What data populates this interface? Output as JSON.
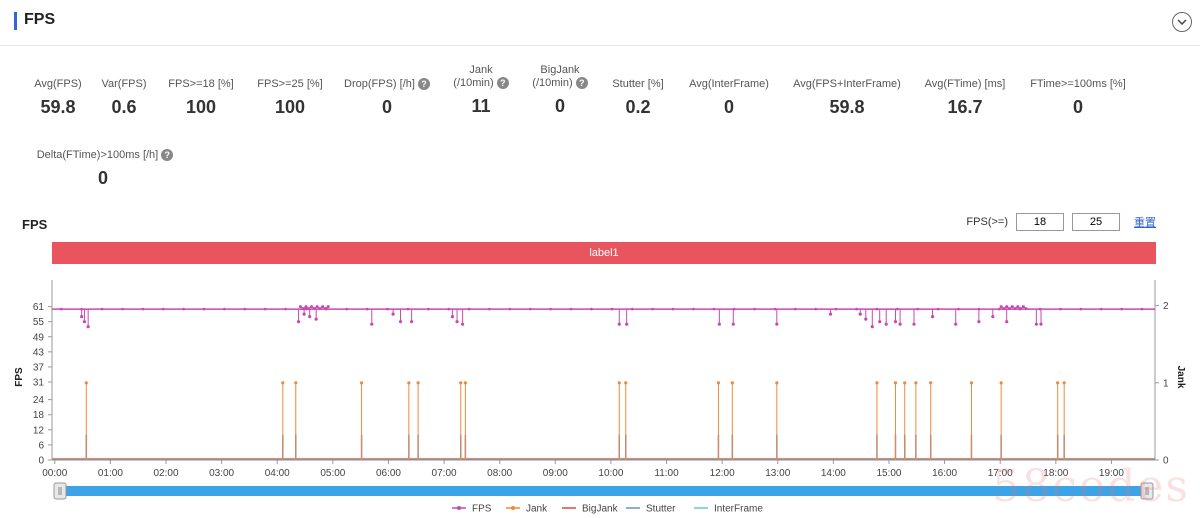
{
  "header": {
    "title": "FPS",
    "collapse_icon": "chevron-down-icon"
  },
  "metrics": [
    {
      "label": "Avg(FPS)",
      "value": "59.8",
      "help": false
    },
    {
      "label": "Var(FPS)",
      "value": "0.6",
      "help": false
    },
    {
      "label": "FPS>=18 [%]",
      "value": "100",
      "help": false
    },
    {
      "label": "FPS>=25 [%]",
      "value": "100",
      "help": false
    },
    {
      "label": "Drop(FPS) [/h]",
      "value": "0",
      "help": true
    },
    {
      "label": "Jank",
      "label2": "(/10min)",
      "value": "11",
      "help": true
    },
    {
      "label": "BigJank",
      "label2": "(/10min)",
      "value": "0",
      "help": true
    },
    {
      "label": "Stutter [%]",
      "value": "0.2",
      "help": false
    },
    {
      "label": "Avg(InterFrame)",
      "value": "0",
      "help": false
    },
    {
      "label": "Avg(FPS+InterFrame)",
      "value": "59.8",
      "help": false
    },
    {
      "label": "Avg(FTime) [ms]",
      "value": "16.7",
      "help": false
    },
    {
      "label": "FTime>=100ms [%]",
      "value": "0",
      "help": false
    },
    {
      "label": "Delta(FTime)>100ms [/h]",
      "value": "0",
      "help": true
    }
  ],
  "chart_section": {
    "title": "FPS",
    "fps_threshold_label": "FPS(>=)",
    "threshold_1": "18",
    "threshold_2": "25",
    "reset_label": "重置",
    "label_band": "label1"
  },
  "chart_data": {
    "type": "line",
    "x_unit": "mm:ss",
    "x_ticks": [
      "00:00",
      "01:00",
      "02:00",
      "03:00",
      "04:00",
      "05:00",
      "06:00",
      "07:00",
      "08:00",
      "09:00",
      "10:00",
      "11:00",
      "12:00",
      "13:00",
      "14:00",
      "15:00",
      "16:00",
      "17:00",
      "18:00",
      "19:00"
    ],
    "xlim": [
      0,
      1190
    ],
    "y_left": {
      "label": "FPS",
      "ticks": [
        0,
        6,
        12,
        18,
        24,
        31,
        37,
        43,
        49,
        55,
        61
      ],
      "ylim": [
        0,
        66
      ]
    },
    "y_right": {
      "label": "Jank",
      "ticks": [
        0,
        1,
        2
      ],
      "ylim": [
        0,
        2.15
      ]
    },
    "fps_baseline": 60,
    "fps_dips": [
      {
        "t": 32,
        "fps": 57
      },
      {
        "t": 35,
        "fps": 55
      },
      {
        "t": 39,
        "fps": 53
      },
      {
        "t": 266,
        "fps": 55
      },
      {
        "t": 272,
        "fps": 58
      },
      {
        "t": 278,
        "fps": 57
      },
      {
        "t": 285,
        "fps": 56
      },
      {
        "t": 345,
        "fps": 54
      },
      {
        "t": 368,
        "fps": 58
      },
      {
        "t": 376,
        "fps": 55
      },
      {
        "t": 388,
        "fps": 55
      },
      {
        "t": 432,
        "fps": 57
      },
      {
        "t": 437,
        "fps": 55
      },
      {
        "t": 443,
        "fps": 54
      },
      {
        "t": 612,
        "fps": 54
      },
      {
        "t": 620,
        "fps": 54
      },
      {
        "t": 720,
        "fps": 54
      },
      {
        "t": 735,
        "fps": 54
      },
      {
        "t": 782,
        "fps": 54
      },
      {
        "t": 840,
        "fps": 58
      },
      {
        "t": 872,
        "fps": 58
      },
      {
        "t": 878,
        "fps": 56
      },
      {
        "t": 885,
        "fps": 53
      },
      {
        "t": 893,
        "fps": 55
      },
      {
        "t": 900,
        "fps": 54
      },
      {
        "t": 910,
        "fps": 55
      },
      {
        "t": 915,
        "fps": 54
      },
      {
        "t": 930,
        "fps": 54
      },
      {
        "t": 950,
        "fps": 57
      },
      {
        "t": 975,
        "fps": 54
      },
      {
        "t": 1000,
        "fps": 55
      },
      {
        "t": 1015,
        "fps": 57
      },
      {
        "t": 1030,
        "fps": 55
      },
      {
        "t": 1062,
        "fps": 54
      },
      {
        "t": 1067,
        "fps": 54
      }
    ],
    "fps_peaks": [
      {
        "t_start": 268,
        "t_end": 298,
        "fps": 61
      },
      {
        "t_start": 1024,
        "t_end": 1052,
        "fps": 61
      }
    ],
    "jank_events": [
      37,
      249,
      263,
      334,
      385,
      395,
      441,
      446,
      612,
      619,
      719,
      734,
      782,
      890,
      910,
      920,
      932,
      948,
      992,
      1024,
      1085,
      1092
    ],
    "stutter_fps_value": 10,
    "legend": [
      {
        "name": "FPS",
        "color": "#c948b0"
      },
      {
        "name": "Jank",
        "color": "#f0883a"
      },
      {
        "name": "BigJank",
        "color": "#e04848"
      },
      {
        "name": "Stutter",
        "color": "#6a8fd8"
      },
      {
        "name": "InterFrame",
        "color": "#5cc8e0"
      }
    ]
  }
}
